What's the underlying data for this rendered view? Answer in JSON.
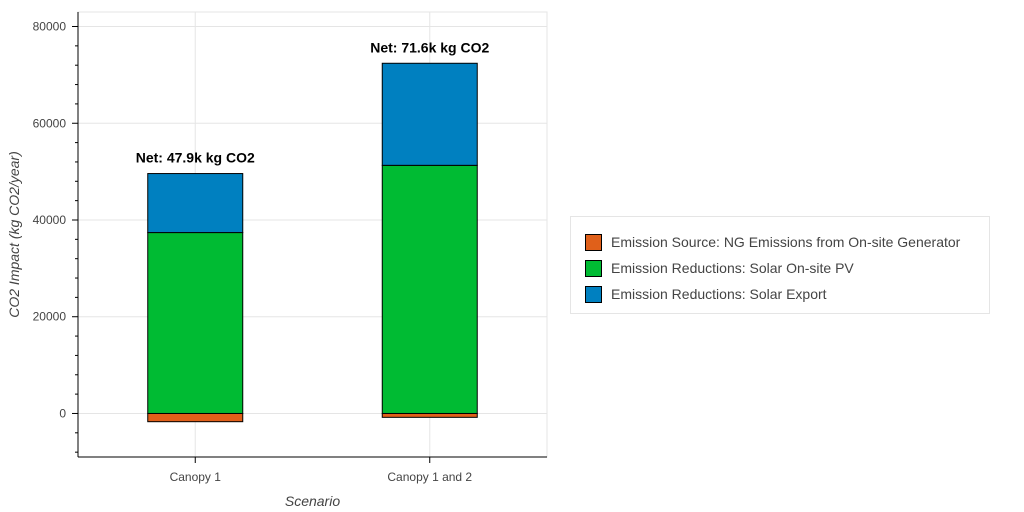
{
  "chart_data": {
    "type": "bar",
    "stacked": true,
    "categories": [
      "Canopy 1",
      "Canopy 1 and 2"
    ],
    "series": [
      {
        "name": "Emission Source: NG Emissions from On-site Generator",
        "color": "#e0601a",
        "values": [
          -1700,
          -800
        ]
      },
      {
        "name": "Emission Reductions: Solar On-site PV",
        "color": "#00bb33",
        "values": [
          37400,
          51300
        ]
      },
      {
        "name": "Emission Reductions: Solar Export",
        "color": "#0080c0",
        "values": [
          12200,
          21100
        ]
      }
    ],
    "annotations": [
      "Net: 47.9k kg CO2",
      "Net: 71.6k kg CO2"
    ],
    "xlabel": "Scenario",
    "ylabel": "CO2 Impact (kg CO2/year)",
    "ylim": [
      -9000,
      83000
    ],
    "yticks": [
      0,
      20000,
      40000,
      60000,
      80000
    ],
    "ytick_labels": [
      "0",
      "20000",
      "40000",
      "60000",
      "80000"
    ],
    "grid": true,
    "legend_position": "right"
  }
}
